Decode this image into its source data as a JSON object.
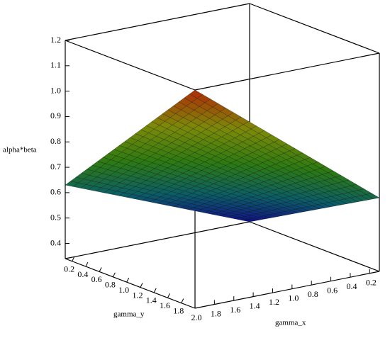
{
  "chart_data": {
    "type": "surface3d",
    "x_label": "gamma_x",
    "y_label": "gamma_y",
    "z_label": "alpha*beta",
    "x": [
      0.1,
      2
    ],
    "y": [
      0.1,
      2
    ],
    "z": [
      [
        0.34,
        0.63
      ],
      [
        0.63,
        1.2
      ]
    ],
    "xlim": [
      0.1,
      2
    ],
    "ylim": [
      0.1,
      2
    ],
    "zlim": [
      0.34,
      1.2
    ],
    "xticks": [
      0.2,
      0.4,
      0.6,
      0.8,
      {
        "value": 1,
        "label": "1.0"
      },
      1.2,
      1.4,
      1.6,
      1.8,
      {
        "value": 2,
        "label": "2.0"
      }
    ],
    "yticks": [
      0.2,
      0.4,
      0.6,
      0.8,
      {
        "value": 1,
        "label": "1.0"
      },
      1.2,
      1.4,
      1.6,
      1.8
    ],
    "zticks": [
      0.4,
      0.5,
      0.6,
      0.7,
      0.8,
      0.9,
      {
        "value": 1,
        "label": "1.0"
      },
      1.1,
      1.2
    ],
    "colormap": [
      "#10108a",
      "#0b5e66",
      "#2c7a12",
      "#7c8a08",
      "#b02a08"
    ],
    "mesh_color": "#000000",
    "box": true
  }
}
